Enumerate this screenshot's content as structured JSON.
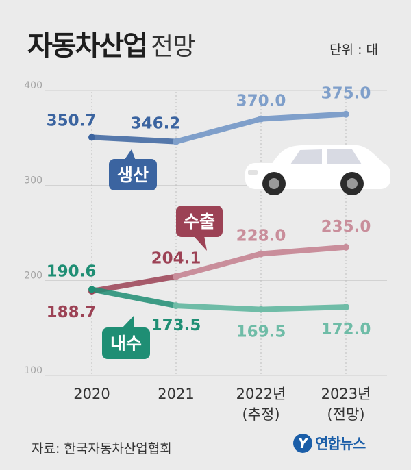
{
  "title": "자동차산업",
  "subtitle": "전망",
  "unit": "단위 : 대",
  "source": "자료: 한국자동차산업협회",
  "logo_text": "연합뉴스",
  "chart_data": {
    "type": "line",
    "categories": [
      "2020",
      "2021",
      "2022년",
      "2023년"
    ],
    "category_sublabels": [
      "",
      "",
      "(추정)",
      "(전망)"
    ],
    "y_ticks": [
      100,
      200,
      300,
      400
    ],
    "ylim": [
      100,
      400
    ],
    "series": [
      {
        "name": "생산",
        "values": [
          350.7,
          346.2,
          370.0,
          375.0
        ],
        "labels": [
          "350.7",
          "346.2",
          "370.0",
          "375.0"
        ],
        "color": "#3b64a0",
        "light_color": "#7f9fca"
      },
      {
        "name": "수출",
        "values": [
          188.7,
          204.1,
          228.0,
          235.0
        ],
        "labels": [
          "188.7",
          "204.1",
          "228.0",
          "235.0"
        ],
        "color": "#9c4255",
        "light_color": "#c98e9b"
      },
      {
        "name": "내수",
        "values": [
          190.6,
          173.5,
          169.5,
          172.0
        ],
        "labels": [
          "190.6",
          "173.5",
          "169.5",
          "172.0"
        ],
        "color": "#1f8e74",
        "light_color": "#6fbca7"
      }
    ]
  }
}
